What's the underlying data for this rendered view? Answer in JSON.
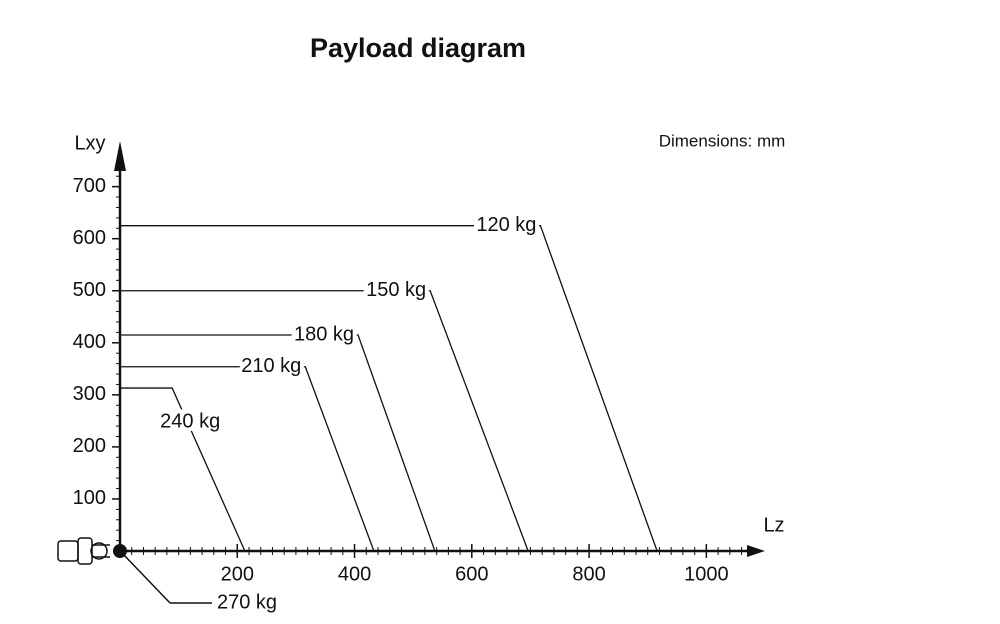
{
  "chart_data": {
    "type": "line",
    "title": "Payload diagram",
    "note": "Dimensions: mm",
    "x_label": "Lz",
    "y_label": "Lxy",
    "xlim": [
      0,
      1100
    ],
    "ylim": [
      0,
      780
    ],
    "xticks": [
      200,
      400,
      600,
      800,
      1000
    ],
    "yticks": [
      100,
      200,
      300,
      400,
      500,
      600,
      700
    ],
    "series": [
      {
        "name": "120 kg",
        "color": "#111111",
        "x": [
          0,
          717,
          916
        ],
        "values": [
          625,
          625,
          0
        ]
      },
      {
        "name": "150 kg",
        "color": "#111111",
        "x": [
          0,
          529,
          696
        ],
        "values": [
          500,
          500,
          0
        ]
      },
      {
        "name": "180 kg",
        "color": "#111111",
        "x": [
          0,
          406,
          537
        ],
        "values": [
          415,
          415,
          0
        ]
      },
      {
        "name": "210 kg",
        "color": "#111111",
        "x": [
          0,
          316,
          433
        ],
        "values": [
          354,
          354,
          0
        ]
      },
      {
        "name": "240 kg",
        "color": "#111111",
        "x": [
          0,
          89,
          213
        ],
        "values": [
          313,
          313,
          0
        ]
      }
    ],
    "origin_label": "270 kg"
  }
}
